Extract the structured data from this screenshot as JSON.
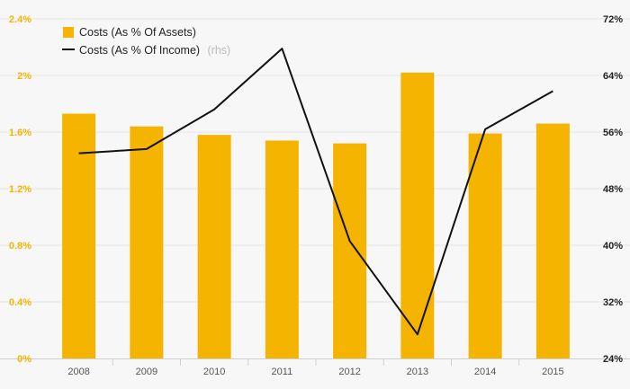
{
  "chart_data": {
    "type": "bar+line",
    "categories": [
      "2008",
      "2009",
      "2010",
      "2011",
      "2012",
      "2013",
      "2014",
      "2015"
    ],
    "series": [
      {
        "name": "Costs (As % Of Assets)",
        "type": "bar",
        "axis": "left",
        "color": "#f5b400",
        "values": [
          1.73,
          1.64,
          1.58,
          1.54,
          1.52,
          2.02,
          1.59,
          1.66
        ]
      },
      {
        "name": "Costs (As % Of Income)",
        "note": "(rhs)",
        "type": "line",
        "axis": "right",
        "color": "#111111",
        "values": [
          53.0,
          53.6,
          59.2,
          67.8,
          40.6,
          27.4,
          56.4,
          61.8
        ]
      }
    ],
    "y_left": {
      "ylim": [
        0,
        2.4
      ],
      "ticks": [
        0,
        0.4,
        0.8,
        1.2,
        1.6,
        2.0,
        2.4
      ],
      "tick_labels": [
        "0%",
        "0.4%",
        "0.8%",
        "1.2%",
        "1.6%",
        "2%",
        "2.4%"
      ]
    },
    "y_right": {
      "ylim": [
        24,
        72
      ],
      "ticks": [
        24,
        32,
        40,
        48,
        56,
        64,
        72
      ],
      "tick_labels": [
        "24%",
        "32%",
        "40%",
        "48%",
        "56%",
        "64%",
        "72%"
      ]
    },
    "legend": {
      "position": "top-left",
      "bar_label": "Costs (As % Of Assets)",
      "line_label": "Costs (As % Of Income)",
      "line_note": "(rhs)"
    },
    "grid": true
  }
}
